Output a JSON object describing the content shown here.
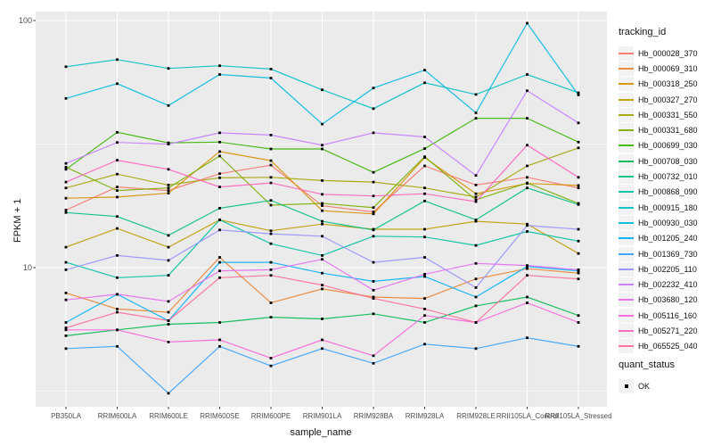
{
  "figure": {
    "y_axis_title": "FPKM + 1",
    "x_axis_title": "sample_name",
    "y_tick_labels": [
      "100",
      "10"
    ],
    "legend_tracking_title": "tracking_id",
    "legend_quant_title": "quant_status",
    "legend_quant_item": "OK",
    "panel_background": "#EBEBEB",
    "gridline_color": "#FFFFFF",
    "tick_text_color": "#4D4D4D",
    "marker": "small-black-square"
  },
  "chart_data": {
    "type": "line",
    "title": "",
    "xlabel": "sample_name",
    "ylabel": "FPKM + 1",
    "y_scale": "log10",
    "y_major_ticks": [
      10,
      100
    ],
    "y_minor_gridlines": [
      3.162,
      31.62
    ],
    "ylim": [
      2.4,
      110
    ],
    "grid": "white major and minor, gray panel",
    "legend_position": "right",
    "x": [
      "PB350LA",
      "RRIM600LA",
      "RRIM600LE",
      "RRIM600SE",
      "RRIM600PE",
      "RRIM901LA",
      "RRIM928BA",
      "RRIM928LA",
      "RRIM928LE",
      "RRII105LA_Control",
      "RRII105LA_Stressed"
    ],
    "series": [
      {
        "name": "Hb_000028_370",
        "color": "#F8766D",
        "values": [
          17.1,
          21.2,
          20.5,
          24.0,
          26.0,
          17.8,
          16.8,
          25.8,
          21.6,
          23.2,
          21.0
        ]
      },
      {
        "name": "Hb_000069_310",
        "color": "#EA8331",
        "values": [
          7.9,
          6.8,
          6.6,
          11.0,
          7.2,
          8.2,
          7.6,
          7.5,
          9.0,
          9.9,
          9.5
        ]
      },
      {
        "name": "Hb_000318_250",
        "color": "#D89000",
        "values": [
          19.1,
          19.3,
          20.0,
          29.5,
          27.1,
          17.0,
          16.5,
          27.9,
          19.9,
          21.9,
          21.5
        ]
      },
      {
        "name": "Hb_000327_270",
        "color": "#C09B00",
        "values": [
          12.1,
          14.4,
          12.1,
          15.6,
          14.1,
          15.0,
          14.3,
          14.3,
          15.4,
          15.0,
          11.4
        ]
      },
      {
        "name": "Hb_000331_550",
        "color": "#A3A500",
        "values": [
          21.0,
          23.9,
          21.6,
          23.1,
          23.2,
          22.5,
          22.2,
          21.0,
          19.3,
          25.8,
          30.5
        ]
      },
      {
        "name": "Hb_000331_680",
        "color": "#7CAE00",
        "values": [
          25.5,
          20.5,
          21.0,
          28.3,
          17.9,
          18.2,
          17.5,
          28.1,
          18.8,
          22.0,
          18.2
        ]
      },
      {
        "name": "Hb_000699_030",
        "color": "#39B600",
        "values": [
          25.0,
          35.3,
          32.0,
          32.2,
          30.2,
          30.2,
          24.3,
          30.3,
          40.2,
          40.2,
          32.2
        ]
      },
      {
        "name": "Hb_000708_030",
        "color": "#00BB4E",
        "values": [
          5.3,
          5.6,
          5.9,
          6.0,
          6.3,
          6.2,
          6.5,
          6.0,
          7.0,
          7.6,
          6.4
        ]
      },
      {
        "name": "Hb_000732_010",
        "color": "#00BF7D",
        "values": [
          16.7,
          16.1,
          13.5,
          17.4,
          18.7,
          15.4,
          14.2,
          18.6,
          15.6,
          21.0,
          18.0
        ]
      },
      {
        "name": "Hb_000868_090",
        "color": "#00C1A3",
        "values": [
          10.5,
          9.1,
          9.3,
          15.6,
          12.5,
          11.2,
          13.4,
          13.3,
          12.3,
          14.0,
          12.8
        ]
      },
      {
        "name": "Hb_000915_180",
        "color": "#00BFC4",
        "values": [
          65.0,
          69.5,
          64.0,
          65.6,
          63.6,
          52.4,
          44.0,
          56.0,
          50.2,
          60.5,
          51.0
        ]
      },
      {
        "name": "Hb_000930_030",
        "color": "#00BAE0",
        "values": [
          48.4,
          55.5,
          45.3,
          60.5,
          58.5,
          38.1,
          53.3,
          63.0,
          42.3,
          97.5,
          50.0
        ]
      },
      {
        "name": "Hb_001205_240",
        "color": "#00B0F6",
        "values": [
          6.0,
          7.8,
          6.1,
          10.5,
          10.5,
          9.5,
          8.8,
          9.2,
          7.6,
          10.1,
          9.7
        ]
      },
      {
        "name": "Hb_001369_730",
        "color": "#35A2FF",
        "values": [
          4.7,
          4.8,
          3.1,
          4.8,
          4.0,
          4.7,
          4.1,
          4.9,
          4.7,
          5.2,
          4.8
        ]
      },
      {
        "name": "Hb_002205_110",
        "color": "#9590FF",
        "values": [
          9.8,
          11.2,
          10.7,
          14.2,
          13.7,
          13.4,
          10.5,
          11.0,
          8.3,
          14.8,
          14.3
        ]
      },
      {
        "name": "Hb_002232_410",
        "color": "#C77CFF",
        "values": [
          26.4,
          32.1,
          31.6,
          35.1,
          34.4,
          31.3,
          35.1,
          33.8,
          23.6,
          52.0,
          38.5
        ]
      },
      {
        "name": "Hb_003680_120",
        "color": "#E76BF3",
        "values": [
          7.4,
          7.8,
          7.3,
          9.7,
          9.8,
          10.8,
          8.1,
          9.4,
          10.4,
          10.2,
          9.8
        ]
      },
      {
        "name": "Hb_005116_160",
        "color": "#FA62DB",
        "values": [
          5.6,
          5.6,
          5.0,
          5.1,
          4.3,
          5.1,
          4.4,
          6.4,
          6.0,
          7.2,
          6.0
        ]
      },
      {
        "name": "Hb_005271_220",
        "color": "#FF62BC",
        "values": [
          22.2,
          27.2,
          25.0,
          21.2,
          22.0,
          19.8,
          19.5,
          19.9,
          18.5,
          31.3,
          23.2
        ]
      },
      {
        "name": "Hb_065525_040",
        "color": "#FF6A98",
        "values": [
          5.7,
          6.6,
          6.1,
          9.1,
          9.3,
          8.5,
          7.5,
          6.8,
          6.0,
          9.3,
          9.0
        ]
      }
    ]
  }
}
